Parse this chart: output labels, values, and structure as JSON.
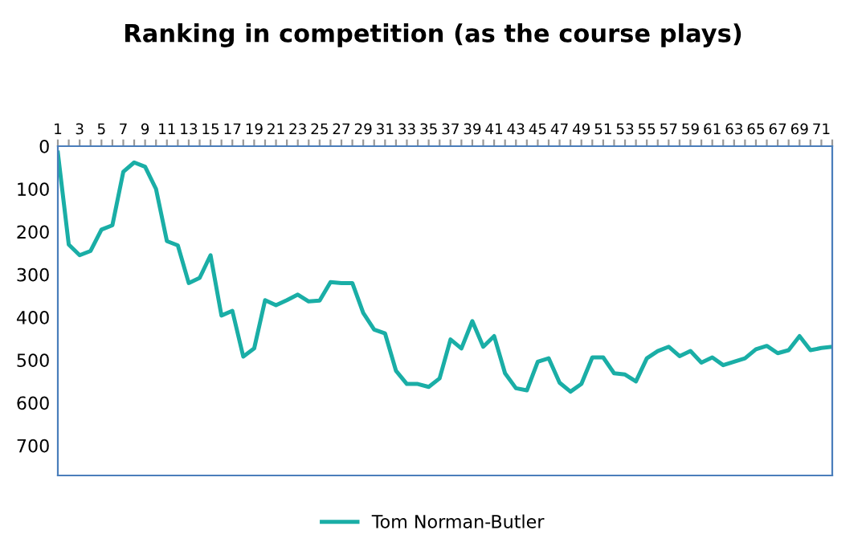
{
  "chart_data": {
    "type": "line",
    "title": "Ranking in competition (as the course plays)",
    "categories": [
      "1",
      null,
      "3",
      null,
      "5",
      null,
      "7",
      null,
      "9",
      null,
      "11",
      null,
      "13",
      null,
      "15",
      null,
      "17",
      null,
      "19",
      null,
      "21",
      null,
      "23",
      null,
      "25",
      null,
      "27",
      null,
      "29",
      null,
      "31",
      null,
      "33",
      null,
      "35",
      null,
      "37",
      null,
      "39",
      null,
      "41",
      null,
      "43",
      null,
      "45",
      null,
      "47",
      null,
      "49",
      null,
      "51",
      null,
      "53",
      null,
      "55",
      null,
      "57",
      null,
      "59",
      null,
      "61",
      null,
      "63",
      null,
      "65",
      null,
      "67",
      null,
      "69",
      null,
      "71",
      null
    ],
    "series": [
      {
        "name": "Tom Norman-Butler",
        "color": "#1aaea6",
        "values": [
          15,
          230,
          255,
          245,
          195,
          185,
          60,
          38,
          48,
          100,
          222,
          232,
          320,
          308,
          255,
          396,
          385,
          492,
          473,
          360,
          372,
          360,
          347,
          363,
          361,
          318,
          320,
          320,
          390,
          429,
          438,
          525,
          556,
          556,
          563,
          543,
          452,
          473,
          409,
          469,
          444,
          531,
          566,
          571,
          504,
          496,
          553,
          574,
          556,
          494,
          494,
          531,
          534,
          550,
          496,
          479,
          469,
          491,
          479,
          506,
          494,
          512,
          504,
          496,
          475,
          467,
          484,
          477,
          444,
          477,
          472,
          469
        ]
      }
    ],
    "ylim": [
      770,
      0
    ],
    "yticks": [
      0,
      100,
      200,
      300,
      400,
      500,
      600,
      700
    ],
    "grid": false,
    "legend": "bottom",
    "marker": "none",
    "line_style": "solid"
  }
}
